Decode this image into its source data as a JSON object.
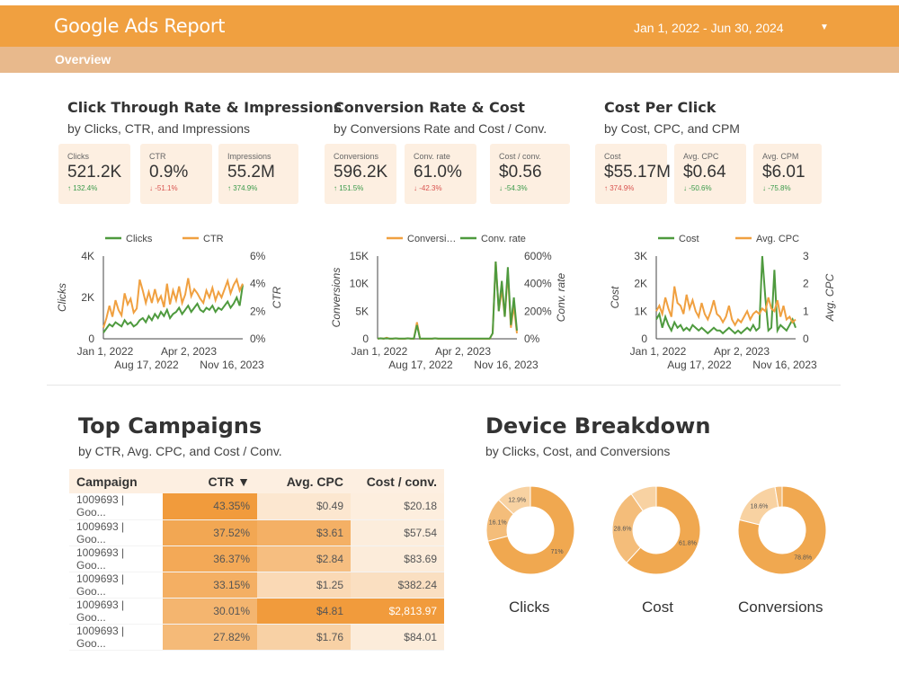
{
  "header": {
    "title": "Google Ads Report",
    "date_range": "Jan 1, 2022 - Jun 30, 2024",
    "tab": "Overview"
  },
  "colors": {
    "orange": "#f0a040",
    "green": "#4e9a3e",
    "header": "#f0a040",
    "subbar": "#e8b98c",
    "kpi_bg": "#fdefe1"
  },
  "sections": [
    {
      "title": "Click Through Rate & Impressions",
      "subtitle": "by Clicks, CTR, and Impressions",
      "kpis": [
        {
          "label": "Clicks",
          "value": "521.2K",
          "delta": "↑ 132.4%",
          "dir": "up"
        },
        {
          "label": "CTR",
          "value": "0.9%",
          "delta": "↓ -51.1%",
          "dir": "down"
        },
        {
          "label": "Impressions",
          "value": "55.2M",
          "delta": "↑ 374.9%",
          "dir": "up"
        }
      ]
    },
    {
      "title": "Conversion Rate & Cost",
      "subtitle": "by Conversions Rate and Cost / Conv.",
      "kpis": [
        {
          "label": "Conversions",
          "value": "596.2K",
          "delta": "↑ 151.5%",
          "dir": "up"
        },
        {
          "label": "Conv. rate",
          "value": "61.0%",
          "delta": "↓ -42.3%",
          "dir": "down"
        },
        {
          "label": "Cost / conv.",
          "value": "$0.56",
          "delta": "↓ -54.3%",
          "dir": "up"
        }
      ]
    },
    {
      "title": "Cost Per Click",
      "subtitle": "by Cost, CPC, and CPM",
      "kpis": [
        {
          "label": "Cost",
          "value": "$55.17M",
          "delta": "↑ 374.9%",
          "dir": "down"
        },
        {
          "label": "Avg. CPC",
          "value": "$0.64",
          "delta": "↓ -50.6%",
          "dir": "up"
        },
        {
          "label": "Avg. CPM",
          "value": "$6.01",
          "delta": "↓ -75.8%",
          "dir": "up"
        }
      ]
    }
  ],
  "chart_data": [
    {
      "type": "line",
      "legend": [
        "Clicks",
        "CTR"
      ],
      "ylabel": "Clicks",
      "y2label": "CTR",
      "yticks": [
        "4K",
        "2K",
        "0"
      ],
      "y2ticks": [
        "6%",
        "4%",
        "2%",
        "0%"
      ],
      "xticks_row1": [
        "Jan 1, 2022",
        "Apr 2, 2023"
      ],
      "xticks_row2": [
        "Aug 17, 2022",
        "Nov 16, 2023"
      ],
      "ylim": [
        0,
        4000
      ],
      "y2lim": [
        0,
        6
      ],
      "series": [
        {
          "name": "Clicks",
          "color": "#4e9a3e",
          "values": [
            300,
            500,
            700,
            600,
            800,
            700,
            600,
            900,
            700,
            800,
            600,
            700,
            900,
            1000,
            800,
            1100,
            900,
            1200,
            1000,
            1300,
            1100,
            1400,
            1000,
            1200,
            1300,
            1500,
            1200,
            1400,
            1600,
            1300,
            1500,
            1700,
            1400,
            1300,
            1500,
            1400,
            1600,
            1300,
            1500,
            1400,
            1600,
            1800,
            1500,
            1700,
            2000,
            1600,
            2600
          ]
        },
        {
          "name": "CTR",
          "color": "#f0a040",
          "values": [
            0.8,
            1.5,
            2.4,
            1.6,
            2.8,
            2.1,
            1.7,
            3.3,
            2.5,
            2.9,
            1.9,
            2.2,
            4.3,
            3.5,
            2.6,
            3.4,
            2.6,
            3.6,
            2.7,
            3.1,
            2.3,
            4.0,
            2.5,
            3.5,
            2.8,
            3.8,
            2.6,
            3.2,
            4.4,
            3.1,
            3.6,
            3.3,
            2.9,
            2.6,
            3.5,
            3.0,
            3.7,
            2.8,
            3.4,
            3.0,
            3.6,
            4.2,
            3.3,
            3.9,
            4.3,
            3.5,
            4.0
          ]
        }
      ]
    },
    {
      "type": "line",
      "legend": [
        "Conversi…",
        "Conv. rate"
      ],
      "ylabel": "Conversions",
      "y2label": "Conv. rate",
      "yticks": [
        "15K",
        "10K",
        "5K",
        "0"
      ],
      "y2ticks": [
        "600%",
        "400%",
        "200%",
        "0%"
      ],
      "xticks_row1": [
        "Jan 1, 2022",
        "Apr 2, 2023"
      ],
      "xticks_row2": [
        "Aug 17, 2022",
        "Nov 16, 2023"
      ],
      "ylim": [
        0,
        15000
      ],
      "y2lim": [
        0,
        600
      ],
      "series": [
        {
          "name": "Conversions",
          "color": "#f0a040",
          "values": [
            0,
            100,
            0,
            200,
            0,
            0,
            100,
            0,
            0,
            0,
            100,
            0,
            0,
            3000,
            0,
            0,
            0,
            0,
            0,
            100,
            0,
            0,
            0,
            0,
            0,
            0,
            0,
            0,
            0,
            0,
            0,
            0,
            0,
            0,
            0,
            0,
            0,
            0,
            1000,
            14000,
            5000,
            9000,
            4000,
            12000,
            2000,
            6000,
            1000
          ]
        },
        {
          "name": "Conv. rate",
          "color": "#4e9a3e",
          "values": [
            2,
            3,
            2,
            3,
            2,
            2,
            3,
            2,
            2,
            2,
            3,
            2,
            2,
            100,
            2,
            2,
            2,
            2,
            2,
            3,
            2,
            2,
            2,
            2,
            2,
            2,
            2,
            2,
            2,
            2,
            2,
            2,
            2,
            2,
            2,
            2,
            2,
            2,
            40,
            560,
            200,
            420,
            160,
            520,
            100,
            300,
            60
          ]
        }
      ]
    },
    {
      "type": "line",
      "legend": [
        "Cost",
        "Avg. CPC"
      ],
      "ylabel": "Cost",
      "y2label": "Avg. CPC",
      "yticks": [
        "3K",
        "2K",
        "1K",
        "0"
      ],
      "y2ticks": [
        "3",
        "2",
        "1",
        "0"
      ],
      "xticks_row1": [
        "Jan 1, 2022",
        "Apr 2, 2023"
      ],
      "xticks_row2": [
        "Aug 17, 2022",
        "Nov 16, 2023"
      ],
      "ylim": [
        0,
        3000
      ],
      "y2lim": [
        0,
        3
      ],
      "series": [
        {
          "name": "Cost",
          "color": "#4e9a3e",
          "values": [
            700,
            900,
            400,
            800,
            500,
            300,
            600,
            400,
            500,
            300,
            400,
            300,
            500,
            400,
            300,
            400,
            300,
            200,
            300,
            400,
            300,
            300,
            200,
            300,
            400,
            300,
            200,
            300,
            200,
            300,
            400,
            300,
            500,
            300,
            400,
            3000,
            1500,
            300,
            400,
            2500,
            300,
            500,
            400,
            300,
            500,
            700,
            400
          ]
        },
        {
          "name": "Avg. CPC",
          "color": "#f0a040",
          "values": [
            1.0,
            1.2,
            0.9,
            1.5,
            1.1,
            0.8,
            1.9,
            1.3,
            1.2,
            0.9,
            1.6,
            1.1,
            1.4,
            1.0,
            0.8,
            1.3,
            0.9,
            0.7,
            1.0,
            1.4,
            0.9,
            0.8,
            0.6,
            0.8,
            1.2,
            0.7,
            0.5,
            0.7,
            0.6,
            0.8,
            1.0,
            0.7,
            0.9,
            1.0,
            0.9,
            1.1,
            1.0,
            1.5,
            1.1,
            1.0,
            1.4,
            0.8,
            1.2,
            0.7,
            0.8,
            0.6,
            0.7
          ]
        }
      ]
    }
  ],
  "campaigns": {
    "title": "Top Campaigns",
    "subtitle": "by CTR, Avg. CPC, and Cost / Conv.",
    "columns": [
      "Campaign",
      "CTR ▼",
      "Avg. CPC",
      "Cost / conv."
    ],
    "rows": [
      {
        "name": "1009693 | Goo...",
        "ctr": "43.35%",
        "cpc": "$0.49",
        "cost": "$20.18",
        "ctr_v": 43.35,
        "cpc_v": 0.49,
        "cost_v": 20.18
      },
      {
        "name": "1009693 | Goo...",
        "ctr": "37.52%",
        "cpc": "$3.61",
        "cost": "$57.54",
        "ctr_v": 37.52,
        "cpc_v": 3.61,
        "cost_v": 57.54
      },
      {
        "name": "1009693 | Goo...",
        "ctr": "36.37%",
        "cpc": "$2.84",
        "cost": "$83.69",
        "ctr_v": 36.37,
        "cpc_v": 2.84,
        "cost_v": 83.69
      },
      {
        "name": "1009693 | Goo...",
        "ctr": "33.15%",
        "cpc": "$1.25",
        "cost": "$382.24",
        "ctr_v": 33.15,
        "cpc_v": 1.25,
        "cost_v": 382.24
      },
      {
        "name": "1009693 | Goo...",
        "ctr": "30.01%",
        "cpc": "$4.81",
        "cost": "$2,813.97",
        "ctr_v": 30.01,
        "cpc_v": 4.81,
        "cost_v": 2813.97
      },
      {
        "name": "1009693 | Goo...",
        "ctr": "27.82%",
        "cpc": "$1.76",
        "cost": "$84.01",
        "ctr_v": 27.82,
        "cpc_v": 1.76,
        "cost_v": 84.01
      }
    ]
  },
  "device": {
    "title": "Device Breakdown",
    "subtitle": "by Clicks, Cost, and Conversions",
    "donuts": [
      {
        "label": "Clicks",
        "slices": [
          {
            "value": 71,
            "text": "71%",
            "color": "#f0a850"
          },
          {
            "value": 16.1,
            "text": "16.1%",
            "color": "#f4bd7a"
          },
          {
            "value": 12.9,
            "text": "12.9%",
            "color": "#f8d2a2"
          }
        ]
      },
      {
        "label": "Cost",
        "slices": [
          {
            "value": 61.8,
            "text": "61.8%",
            "color": "#f0a850"
          },
          {
            "value": 28.6,
            "text": "28.6%",
            "color": "#f4bd7a"
          },
          {
            "value": 9.6,
            "text": "",
            "color": "#f8d2a2"
          }
        ]
      },
      {
        "label": "Conversions",
        "slices": [
          {
            "value": 78.8,
            "text": "78.8%",
            "color": "#f0a850"
          },
          {
            "value": 18.6,
            "text": "18.6%",
            "color": "#f8d2a2"
          },
          {
            "value": 2.6,
            "text": "",
            "color": "#f4bd7a"
          }
        ]
      }
    ]
  }
}
